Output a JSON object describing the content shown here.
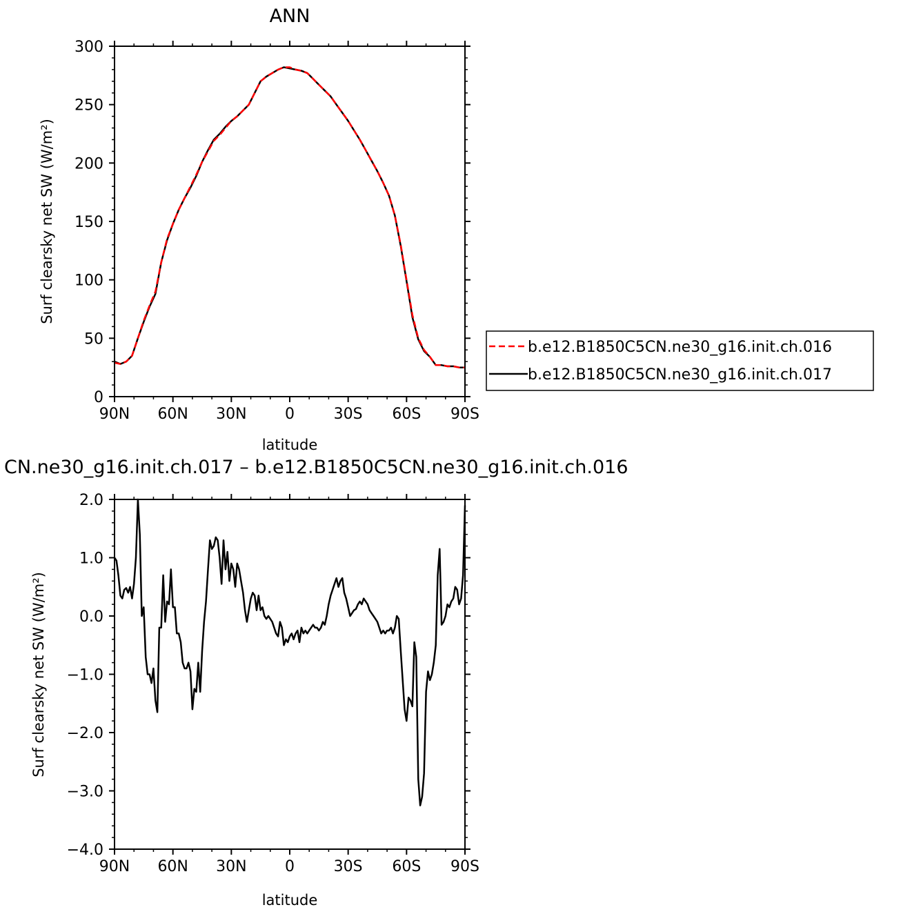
{
  "chart_data": [
    {
      "type": "line",
      "title": "ANN",
      "xlabel": "latitude",
      "ylabel": "Surf clearsky net SW (W/m²)",
      "x_ticks": [
        "90N",
        "60N",
        "30N",
        "0",
        "30S",
        "60S",
        "90S"
      ],
      "x_tick_values": [
        90,
        60,
        30,
        0,
        -30,
        -60,
        -90
      ],
      "xlim": [
        90,
        -90
      ],
      "y_ticks": [
        "0",
        "50",
        "100",
        "150",
        "200",
        "250",
        "300"
      ],
      "y_tick_values": [
        0,
        50,
        100,
        150,
        200,
        250,
        300
      ],
      "ylim": [
        0,
        300
      ],
      "legend_position": "right",
      "series": [
        {
          "name": "b.e12.B1850C5CN.ne30_g16.init.ch.016",
          "color": "#ff0000",
          "style": "dashed",
          "x": [
            90,
            87,
            84,
            81,
            78,
            75,
            72,
            69,
            66,
            63,
            60,
            57,
            54,
            51,
            48,
            45,
            42,
            39,
            36,
            33,
            30,
            27,
            24,
            21,
            18,
            15,
            12,
            9,
            6,
            3,
            0,
            -3,
            -6,
            -9,
            -12,
            -15,
            -18,
            -21,
            -24,
            -27,
            -30,
            -33,
            -36,
            -39,
            -42,
            -45,
            -48,
            -51,
            -54,
            -57,
            -60,
            -63,
            -66,
            -69,
            -72,
            -75,
            -78,
            -81,
            -84,
            -87,
            -90
          ],
          "values": [
            29,
            28,
            30,
            35,
            50,
            65,
            78,
            90,
            115,
            135,
            148,
            160,
            170,
            180,
            190,
            201,
            210,
            219,
            224,
            230,
            236,
            240,
            245,
            250,
            260,
            270,
            274,
            277,
            280,
            282,
            282,
            280,
            279,
            277,
            272,
            267,
            262,
            257,
            250,
            243,
            236,
            228,
            220,
            211,
            202,
            193,
            183,
            172,
            155,
            130,
            100,
            70,
            50,
            40,
            34,
            27,
            27,
            26,
            26,
            25,
            25
          ]
        },
        {
          "name": "b.e12.B1850C5CN.ne30_g16.init.ch.017",
          "color": "#000000",
          "style": "solid",
          "x": [
            90,
            87,
            84,
            81,
            78,
            75,
            72,
            69,
            66,
            63,
            60,
            57,
            54,
            51,
            48,
            45,
            42,
            39,
            36,
            33,
            30,
            27,
            24,
            21,
            18,
            15,
            12,
            9,
            6,
            3,
            0,
            -3,
            -6,
            -9,
            -12,
            -15,
            -18,
            -21,
            -24,
            -27,
            -30,
            -33,
            -36,
            -39,
            -42,
            -45,
            -48,
            -51,
            -54,
            -57,
            -60,
            -63,
            -66,
            -69,
            -72,
            -75,
            -78,
            -81,
            -84,
            -87,
            -90
          ],
          "values": [
            30,
            28,
            30,
            35,
            50,
            64,
            77,
            88,
            115,
            134,
            148,
            160,
            170,
            179,
            189,
            201,
            211,
            220,
            225,
            231,
            236,
            240,
            245,
            250,
            260,
            270,
            274,
            277,
            280,
            282,
            281,
            280,
            279,
            277,
            272,
            267,
            262,
            257,
            250,
            243,
            236,
            228,
            220,
            211,
            202,
            193,
            183,
            172,
            155,
            129,
            99,
            68,
            49,
            39,
            34,
            27,
            27,
            26,
            26,
            25,
            25
          ]
        }
      ]
    },
    {
      "type": "line",
      "title": "CN.ne30_g16.init.ch.017 – b.e12.B1850C5CN.ne30_g16.init.ch.016",
      "xlabel": "latitude",
      "ylabel": "Surf clearsky net SW (W/m²)",
      "x_ticks": [
        "90N",
        "60N",
        "30N",
        "0",
        "30S",
        "60S",
        "90S"
      ],
      "x_tick_values": [
        90,
        60,
        30,
        0,
        -30,
        -60,
        -90
      ],
      "xlim": [
        90,
        -90
      ],
      "y_ticks": [
        "2.0",
        "1.0",
        "0.0",
        "−1.0",
        "−2.0",
        "−3.0",
        "−4.0"
      ],
      "y_tick_values": [
        2,
        1,
        0,
        -1,
        -2,
        -3,
        -4
      ],
      "ylim": [
        -4,
        2
      ],
      "series": [
        {
          "name": "",
          "color": "#000000",
          "style": "solid",
          "x": [
            90,
            89,
            88,
            87,
            86,
            85,
            84,
            83,
            82,
            81,
            80,
            79,
            78,
            77,
            76,
            75,
            74,
            73,
            72,
            71,
            70,
            69,
            68,
            67,
            66,
            65,
            64,
            63,
            62,
            61,
            60,
            59,
            58,
            57,
            56,
            55,
            54,
            53,
            52,
            51,
            50,
            49,
            48,
            47,
            46,
            45,
            44,
            43,
            42,
            41,
            40,
            39,
            38,
            37,
            36,
            35,
            34,
            33,
            32,
            31,
            30,
            29,
            28,
            27,
            26,
            25,
            24,
            23,
            22,
            21,
            20,
            19,
            18,
            17,
            16,
            15,
            14,
            13,
            12,
            11,
            10,
            9,
            8,
            7,
            6,
            5,
            4,
            3,
            2,
            1,
            0,
            -1,
            -2,
            -3,
            -4,
            -5,
            -6,
            -7,
            -8,
            -9,
            -10,
            -11,
            -12,
            -13,
            -14,
            -15,
            -16,
            -17,
            -18,
            -19,
            -20,
            -21,
            -22,
            -23,
            -24,
            -25,
            -26,
            -27,
            -28,
            -29,
            -30,
            -31,
            -32,
            -33,
            -34,
            -35,
            -36,
            -37,
            -38,
            -39,
            -40,
            -41,
            -42,
            -43,
            -44,
            -45,
            -46,
            -47,
            -48,
            -49,
            -50,
            -51,
            -52,
            -53,
            -54,
            -55,
            -56,
            -57,
            -58,
            -59,
            -60,
            -61,
            -62,
            -63,
            -64,
            -65,
            -66,
            -67,
            -68,
            -69,
            -70,
            -71,
            -72,
            -73,
            -74,
            -75,
            -76,
            -77,
            -78,
            -79,
            -80,
            -81,
            -82,
            -83,
            -84,
            -85,
            -86,
            -87,
            -88,
            -89,
            -90
          ],
          "values": [
            1.0,
            0.95,
            0.7,
            0.35,
            0.3,
            0.45,
            0.48,
            0.4,
            0.5,
            0.3,
            0.55,
            1.0,
            2.0,
            1.4,
            0.0,
            0.15,
            -0.7,
            -1.0,
            -1.0,
            -1.15,
            -0.9,
            -1.45,
            -1.65,
            -0.2,
            -0.2,
            0.7,
            -0.1,
            0.25,
            0.2,
            0.8,
            0.15,
            0.15,
            -0.3,
            -0.3,
            -0.45,
            -0.8,
            -0.9,
            -0.9,
            -0.8,
            -0.95,
            -1.6,
            -1.25,
            -1.3,
            -0.8,
            -1.3,
            -0.6,
            -0.1,
            0.25,
            0.8,
            1.3,
            1.15,
            1.2,
            1.35,
            1.3,
            1.0,
            0.55,
            1.3,
            0.8,
            1.1,
            0.6,
            0.9,
            0.8,
            0.5,
            0.9,
            0.8,
            0.6,
            0.4,
            0.1,
            -0.1,
            0.1,
            0.3,
            0.4,
            0.35,
            0.1,
            0.35,
            0.1,
            0.15,
            0.0,
            -0.05,
            0.0,
            -0.05,
            -0.1,
            -0.2,
            -0.3,
            -0.35,
            -0.1,
            -0.2,
            -0.5,
            -0.4,
            -0.45,
            -0.35,
            -0.3,
            -0.4,
            -0.3,
            -0.25,
            -0.45,
            -0.2,
            -0.3,
            -0.25,
            -0.3,
            -0.25,
            -0.2,
            -0.15,
            -0.2,
            -0.2,
            -0.25,
            -0.2,
            -0.1,
            -0.15,
            0.0,
            0.2,
            0.35,
            0.45,
            0.55,
            0.65,
            0.5,
            0.6,
            0.65,
            0.4,
            0.3,
            0.15,
            0.0,
            0.05,
            0.1,
            0.12,
            0.2,
            0.25,
            0.2,
            0.3,
            0.25,
            0.2,
            0.1,
            0.05,
            0.0,
            -0.05,
            -0.1,
            -0.2,
            -0.3,
            -0.25,
            -0.3,
            -0.25,
            -0.25,
            -0.2,
            -0.3,
            -0.2,
            0.0,
            -0.05,
            -0.6,
            -1.1,
            -1.6,
            -1.8,
            -1.4,
            -1.45,
            -1.55,
            -0.45,
            -0.7,
            -2.8,
            -3.25,
            -3.1,
            -2.7,
            -1.3,
            -0.95,
            -1.1,
            -1.0,
            -0.8,
            -0.5,
            0.7,
            1.15,
            -0.15,
            -0.1,
            0.0,
            0.2,
            0.15,
            0.25,
            0.3,
            0.5,
            0.45,
            0.2,
            0.3,
            0.7,
            1.9
          ]
        }
      ]
    }
  ]
}
